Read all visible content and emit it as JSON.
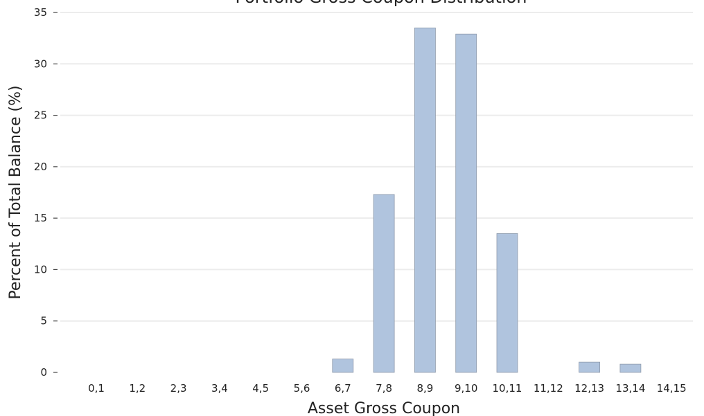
{
  "chart_data": {
    "type": "bar",
    "title": "Portfolio Gross Coupon Distribution",
    "xlabel": "Asset Gross Coupon",
    "ylabel": "Percent of Total Balance (%)",
    "categories": [
      "0,1",
      "1,2",
      "2,3",
      "3,4",
      "4,5",
      "5,6",
      "6,7",
      "7,8",
      "8,9",
      "9,10",
      "10,11",
      "11,12",
      "12,13",
      "13,14",
      "14,15"
    ],
    "values": [
      0,
      0,
      0,
      0,
      0,
      0,
      1.3,
      17.3,
      33.5,
      32.9,
      13.5,
      0,
      1.0,
      0.8,
      0
    ],
    "ylim": [
      0,
      35
    ],
    "yticks": [
      "0",
      "5",
      "10",
      "15",
      "20",
      "25",
      "30",
      "35"
    ],
    "grid": "horizontal",
    "colors": {
      "bar": "#b0c4de",
      "bar_edge": "#8e9aab",
      "grid": "#ececec",
      "text": "#222222"
    }
  }
}
